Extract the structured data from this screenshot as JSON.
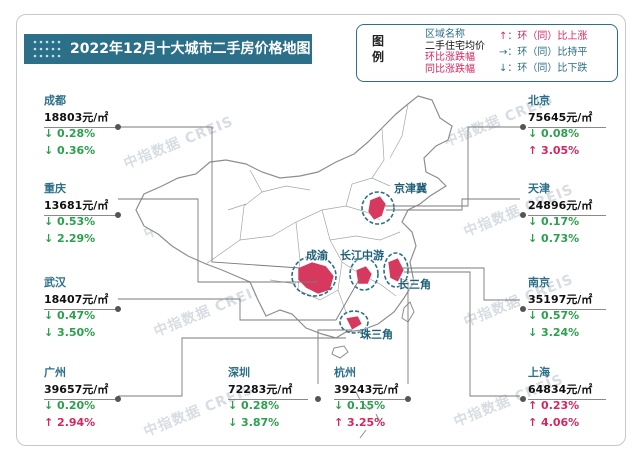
{
  "title": "2022年12月十大城市二手房价格地图",
  "legend": {
    "heading": [
      "图",
      "例"
    ],
    "lines": [
      "区域名称",
      "二手住宅均价",
      "环比涨跌幅",
      "同比涨跌幅"
    ],
    "arrows": [
      "↑：环（同）比上涨",
      "→：环（同）比持平",
      "↓：环（同）比下跌"
    ]
  },
  "watermark": "中指数据 CREIS",
  "regions": [
    "京津冀",
    "长江中游",
    "成渝",
    "长三角",
    "珠三角"
  ],
  "cities": [
    {
      "name": "成都",
      "price": "18803元/㎡",
      "mom": "↓ 0.28%",
      "yoy": "↓ 0.36%",
      "mom_dir": "down",
      "yoy_dir": "down"
    },
    {
      "name": "重庆",
      "price": "13681元/㎡",
      "mom": "↓ 0.53%",
      "yoy": "↓ 2.29%",
      "mom_dir": "down",
      "yoy_dir": "down"
    },
    {
      "name": "武汉",
      "price": "18407元/㎡",
      "mom": "↓ 0.47%",
      "yoy": "↓ 3.50%",
      "mom_dir": "down",
      "yoy_dir": "down"
    },
    {
      "name": "广州",
      "price": "39657元/㎡",
      "mom": "↓ 0.20%",
      "yoy": "↑ 2.94%",
      "mom_dir": "down",
      "yoy_dir": "up"
    },
    {
      "name": "深圳",
      "price": "72283元/㎡",
      "mom": "↓ 0.28%",
      "yoy": "↓ 3.87%",
      "mom_dir": "down",
      "yoy_dir": "down"
    },
    {
      "name": "杭州",
      "price": "39243元/㎡",
      "mom": "↓ 0.15%",
      "yoy": "↑ 3.25%",
      "mom_dir": "down",
      "yoy_dir": "up"
    },
    {
      "name": "北京",
      "price": "75645元/㎡",
      "mom": "↓ 0.08%",
      "yoy": "↑ 3.05%",
      "mom_dir": "down",
      "yoy_dir": "up"
    },
    {
      "name": "天津",
      "price": "24896元/㎡",
      "mom": "↓ 0.17%",
      "yoy": "↓ 0.73%",
      "mom_dir": "down",
      "yoy_dir": "down"
    },
    {
      "name": "南京",
      "price": "35197元/㎡",
      "mom": "↓ 0.57%",
      "yoy": "↓ 3.24%",
      "mom_dir": "down",
      "yoy_dir": "down"
    },
    {
      "name": "上海",
      "price": "64834元/㎡",
      "mom": "↑ 0.23%",
      "yoy": "↑ 4.06%",
      "mom_dir": "up",
      "yoy_dir": "up"
    }
  ],
  "colors": {
    "brand": "#2b6f88",
    "up": "#d7265f",
    "down": "#2aa14b",
    "region_fill": "#d6385e"
  }
}
